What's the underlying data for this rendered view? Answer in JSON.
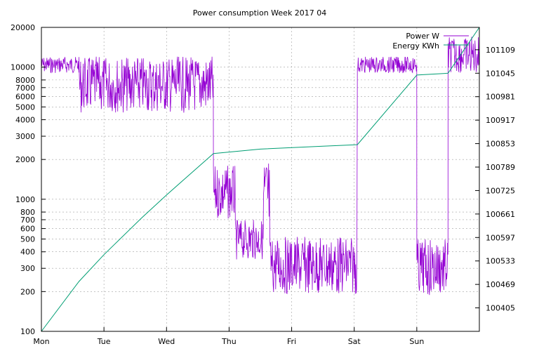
{
  "chart_data": {
    "type": "line",
    "title": "Power consumption Week 2017 04",
    "xlabel": "",
    "ylabel": "",
    "x_ticks": [
      "Mon",
      "Tue",
      "Wed",
      "Thu",
      "Fri",
      "Sat",
      "Sun"
    ],
    "x_range_days": [
      0,
      7
    ],
    "y_left": {
      "scale": "log",
      "range": [
        100,
        20000
      ],
      "ticks": [
        100,
        200,
        300,
        400,
        500,
        600,
        700,
        800,
        1000,
        2000,
        3000,
        4000,
        5000,
        6000,
        7000,
        8000,
        10000,
        20000
      ],
      "tick_labels": [
        "100",
        "200",
        "300",
        "400",
        "500",
        "600",
        "700",
        "800",
        "1000",
        "2000",
        "3000",
        "4000",
        "5000",
        "6000",
        "7000",
        "8000",
        "10000",
        "20000"
      ]
    },
    "y_right": {
      "scale": "linear",
      "range": [
        100341,
        101170
      ],
      "ticks": [
        100405,
        100469,
        100533,
        100597,
        100661,
        100725,
        100789,
        100853,
        100917,
        100981,
        101045,
        101109
      ],
      "tick_labels": [
        "100405",
        "100469",
        "100533",
        "100597",
        "100661",
        "100725",
        "100789",
        "100853",
        "100917",
        "100981",
        "101045",
        "101109"
      ]
    },
    "grid": true,
    "legend_position": "top-right",
    "series": [
      {
        "name": "Power W",
        "axis": "left",
        "color": "#9400d3",
        "segments": [
          {
            "start": 0.0,
            "end": 0.6,
            "mode": "band",
            "low": 9000,
            "high": 12000
          },
          {
            "start": 0.6,
            "end": 2.75,
            "mode": "band",
            "low": 4500,
            "high": 12000
          },
          {
            "start": 2.75,
            "end": 3.1,
            "mode": "band",
            "low": 700,
            "high": 1800
          },
          {
            "start": 3.1,
            "end": 3.55,
            "mode": "band",
            "low": 350,
            "high": 700
          },
          {
            "start": 3.55,
            "end": 3.65,
            "mode": "band",
            "low": 450,
            "high": 2200
          },
          {
            "start": 3.65,
            "end": 5.05,
            "mode": "band",
            "low": 190,
            "high": 520
          },
          {
            "start": 5.05,
            "end": 6.0,
            "mode": "band",
            "low": 9000,
            "high": 12000
          },
          {
            "start": 6.0,
            "end": 6.5,
            "mode": "band",
            "low": 185,
            "high": 500
          },
          {
            "start": 6.5,
            "end": 7.0,
            "mode": "band",
            "low": 9000,
            "high": 17000
          }
        ]
      },
      {
        "name": "Energy KWh",
        "axis": "right",
        "color": "#009e73",
        "points": [
          [
            0.0,
            100341
          ],
          [
            0.6,
            100477
          ],
          [
            1.0,
            100550
          ],
          [
            1.6,
            100650
          ],
          [
            2.0,
            100713
          ],
          [
            2.75,
            100826
          ],
          [
            3.5,
            100838
          ],
          [
            4.5,
            100846
          ],
          [
            5.05,
            100850
          ],
          [
            6.0,
            101040
          ],
          [
            6.5,
            101045
          ],
          [
            7.0,
            101170
          ]
        ]
      }
    ]
  }
}
